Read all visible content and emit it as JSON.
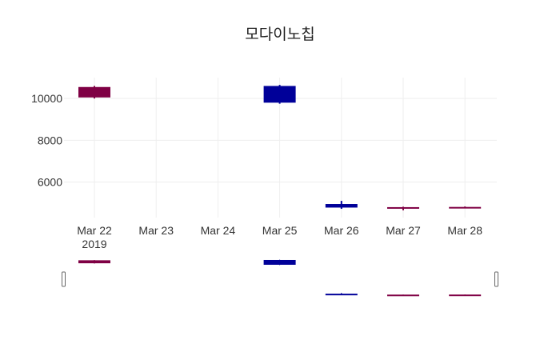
{
  "chart_data": {
    "type": "candlestick",
    "title": "모다이노칩",
    "x_ticks": [
      "Mar 22",
      "Mar 23",
      "Mar 24",
      "Mar 25",
      "Mar 26",
      "Mar 27",
      "Mar 28"
    ],
    "x_year_label": "2019",
    "y_ticks": [
      6000,
      8000,
      10000
    ],
    "ylim": [
      4300,
      11000
    ],
    "range_slider": true,
    "increasing_color": "#7f0044",
    "decreasing_color": "#000099",
    "candles": [
      {
        "date": "Mar 22",
        "open": 10050,
        "high": 10600,
        "low": 10000,
        "close": 10550
      },
      {
        "date": "Mar 25",
        "open": 10600,
        "high": 10650,
        "low": 9750,
        "close": 9800
      },
      {
        "date": "Mar 26",
        "open": 4950,
        "high": 5100,
        "low": 4720,
        "close": 4780
      },
      {
        "date": "Mar 27",
        "open": 4760,
        "high": 4820,
        "low": 4650,
        "close": 4800
      },
      {
        "date": "Mar 28",
        "open": 4760,
        "high": 4830,
        "low": 4740,
        "close": 4810
      }
    ]
  }
}
